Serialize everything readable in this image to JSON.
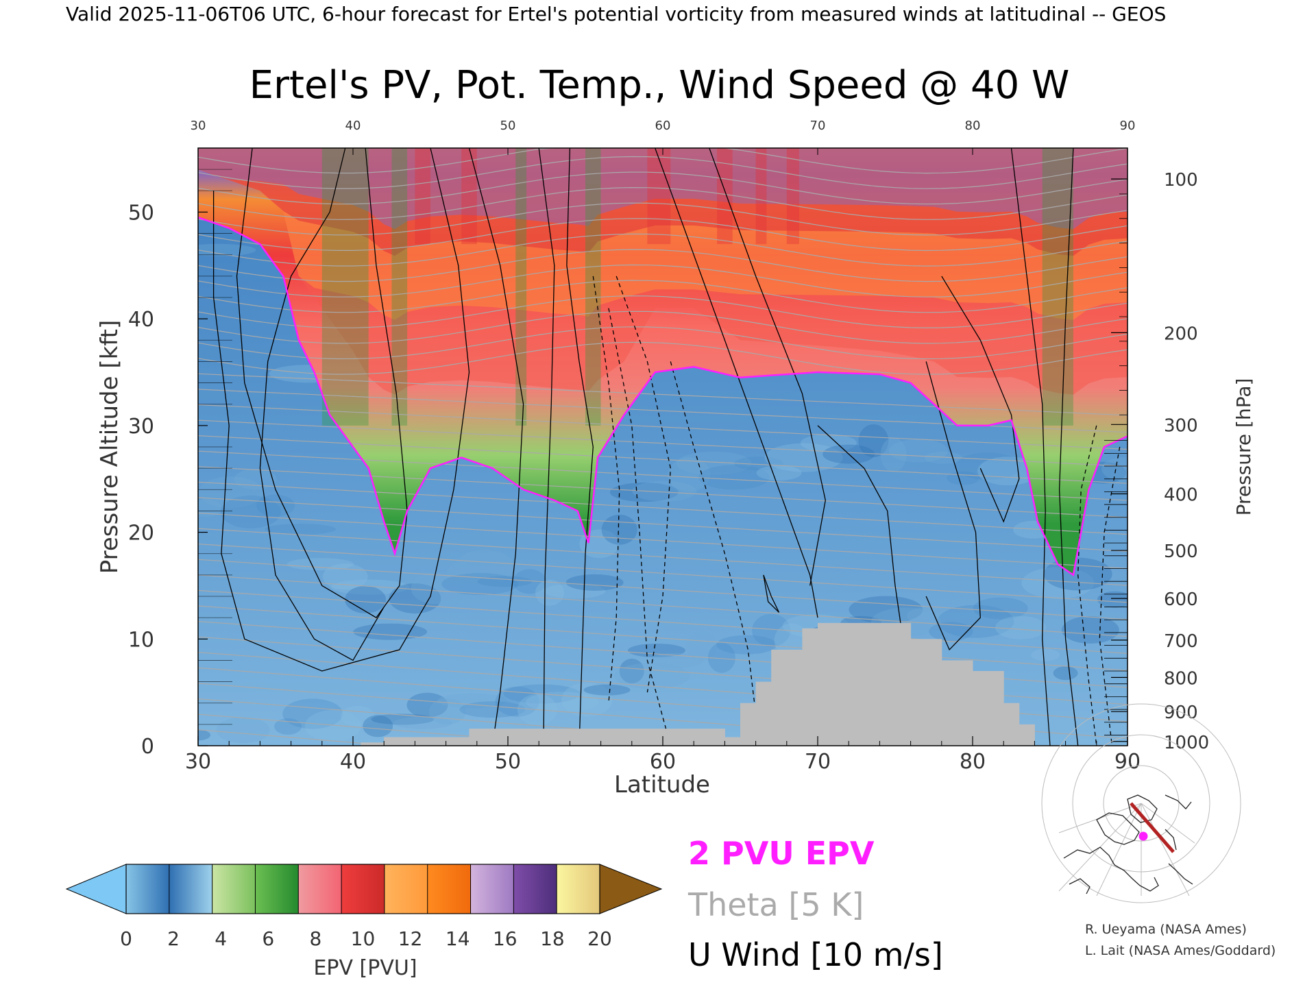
{
  "header": {
    "valid_line": "Valid 2025-11-06T06 UTC, 6-hour forecast for Ertel's potential vorticity from measured winds at latitudinal -- GEOS"
  },
  "chart_data": {
    "type": "heatmap",
    "title": "Ertel's PV, Pot. Temp., Wind Speed @ 40 W",
    "xlabel": "Latitude",
    "ylabel": "Pressure Altitude [kft]",
    "y2label": "Pressure [hPa]",
    "xlim": [
      30,
      90
    ],
    "ylim": [
      0,
      56
    ],
    "x_ticks": [
      "30",
      "40",
      "50",
      "60",
      "70",
      "80",
      "90"
    ],
    "top_ticks": [
      "30",
      "40",
      "50",
      "60",
      "70",
      "80",
      "90"
    ],
    "y_ticks": [
      "0",
      "10",
      "20",
      "30",
      "40",
      "50"
    ],
    "pressure_ticks": [
      {
        "label": "100",
        "kft": 53.1
      },
      {
        "label": "200",
        "kft": 38.7
      },
      {
        "label": "300",
        "kft": 30.1
      },
      {
        "label": "400",
        "kft": 23.6
      },
      {
        "label": "500",
        "kft": 18.3
      },
      {
        "label": "600",
        "kft": 13.8
      },
      {
        "label": "700",
        "kft": 9.9
      },
      {
        "label": "800",
        "kft": 6.4
      },
      {
        "label": "900",
        "kft": 3.2
      },
      {
        "label": "1000",
        "kft": 0.4
      }
    ],
    "tropopause_2pvu_kft": [
      [
        30,
        49.5
      ],
      [
        32,
        48.5
      ],
      [
        34,
        47
      ],
      [
        35.5,
        44
      ],
      [
        36.5,
        38
      ],
      [
        37.5,
        35
      ],
      [
        38.5,
        31
      ],
      [
        40,
        28
      ],
      [
        41,
        26
      ],
      [
        42,
        21
      ],
      [
        42.7,
        18
      ],
      [
        43.5,
        22
      ],
      [
        45,
        26
      ],
      [
        47,
        27
      ],
      [
        49,
        26
      ],
      [
        51,
        24
      ],
      [
        53,
        23
      ],
      [
        54.5,
        22
      ],
      [
        55.2,
        19
      ],
      [
        55.8,
        27
      ],
      [
        57.5,
        31
      ],
      [
        59.5,
        35
      ],
      [
        62,
        35.5
      ],
      [
        65,
        34.5
      ],
      [
        70,
        35
      ],
      [
        74,
        34.8
      ],
      [
        76,
        34
      ],
      [
        77.5,
        32
      ],
      [
        79,
        30
      ],
      [
        81,
        30
      ],
      [
        82.5,
        30.5
      ],
      [
        83.5,
        26
      ],
      [
        84.2,
        21
      ],
      [
        85.5,
        17
      ],
      [
        86.5,
        16
      ],
      [
        87.5,
        24
      ],
      [
        88.5,
        28
      ],
      [
        90,
        29
      ]
    ],
    "tropopause_top_kft": [
      [
        30,
        54
      ],
      [
        32,
        53
      ],
      [
        34,
        52
      ],
      [
        35.5,
        50
      ],
      [
        36.5,
        44
      ],
      [
        37.5,
        42
      ],
      [
        38.5,
        40
      ],
      [
        40,
        37
      ],
      [
        41,
        33
      ],
      [
        42,
        25
      ],
      [
        42.7,
        22
      ],
      [
        43.5,
        27
      ],
      [
        45,
        30
      ],
      [
        47,
        31
      ],
      [
        49,
        30
      ],
      [
        51,
        28
      ],
      [
        53,
        26
      ],
      [
        54.5,
        25
      ],
      [
        55.2,
        24
      ],
      [
        55.8,
        31
      ],
      [
        57.5,
        36
      ],
      [
        59.5,
        41
      ],
      [
        62,
        41
      ],
      [
        65,
        38
      ],
      [
        70,
        37.5
      ],
      [
        74,
        37
      ],
      [
        76,
        36.5
      ],
      [
        77.5,
        36
      ],
      [
        79,
        33
      ],
      [
        81,
        32.5
      ],
      [
        82.5,
        33
      ],
      [
        83.5,
        30
      ],
      [
        84.2,
        26
      ],
      [
        85.5,
        23
      ],
      [
        86.5,
        22
      ],
      [
        87.5,
        29
      ],
      [
        88.5,
        32
      ],
      [
        90,
        33
      ]
    ],
    "high_pv_bands_kft": [
      {
        "bottom": 38,
        "color": "#f45a4f"
      },
      {
        "bottom": 45,
        "color": "#fd8d3c"
      },
      {
        "bottom": 51,
        "color": "#e0323a"
      },
      {
        "bottom": 53.5,
        "color": "#8e67b5"
      }
    ],
    "terrain_steps": [
      [
        40.5,
        42,
        0.3
      ],
      [
        42,
        47.5,
        0.8
      ],
      [
        47.5,
        64,
        1.6
      ],
      [
        64,
        65,
        0.8
      ],
      [
        65,
        66,
        4
      ],
      [
        66,
        67,
        6
      ],
      [
        67,
        69,
        9
      ],
      [
        69,
        70,
        11
      ],
      [
        70,
        76,
        11.5
      ],
      [
        76,
        78,
        10
      ],
      [
        78,
        80,
        8
      ],
      [
        80,
        82,
        7
      ],
      [
        82,
        83,
        4
      ],
      [
        83,
        84,
        2
      ]
    ],
    "legend_entries": [
      "2 PVU EPV",
      "Theta [5 K]",
      "U Wind [10 m/s]"
    ],
    "legend_colors": {
      "epv_2pvu": "#ff1eff",
      "theta": "#a9a9a9",
      "u_wind": "#000000"
    },
    "colorbar": {
      "label": "EPV [PVU]",
      "range": [
        0,
        20
      ],
      "tick_labels": [
        "0",
        "2",
        "4",
        "6",
        "8",
        "10",
        "12",
        "14",
        "16",
        "18",
        "20"
      ],
      "under_color": "#7ec8f5",
      "over_color": "#8b5a14",
      "segments": [
        [
          "#87c4e6",
          "#2f6fb2"
        ],
        [
          "#2f6fb2",
          "#9fd2ec"
        ],
        [
          "#cbe5a4",
          "#7bc05d"
        ],
        [
          "#6cbf52",
          "#248a2e"
        ],
        [
          "#f09aa0",
          "#f36472"
        ],
        [
          "#ef3d3d",
          "#cc2a2a"
        ],
        [
          "#ffb35c",
          "#ff9a3a"
        ],
        [
          "#ff8a20",
          "#f06a0c"
        ],
        [
          "#d3b4dd",
          "#9e79c2"
        ],
        [
          "#7f4da8",
          "#4d2e7b"
        ],
        [
          "#fbf6a0",
          "#e3c77a"
        ]
      ]
    }
  },
  "map_inset": {
    "section_color": "#b22222",
    "marker_color": "#ff1eff"
  },
  "credits": [
    "R. Ueyama (NASA Ames)",
    "L. Lait (NASA Ames/Goddard)"
  ]
}
